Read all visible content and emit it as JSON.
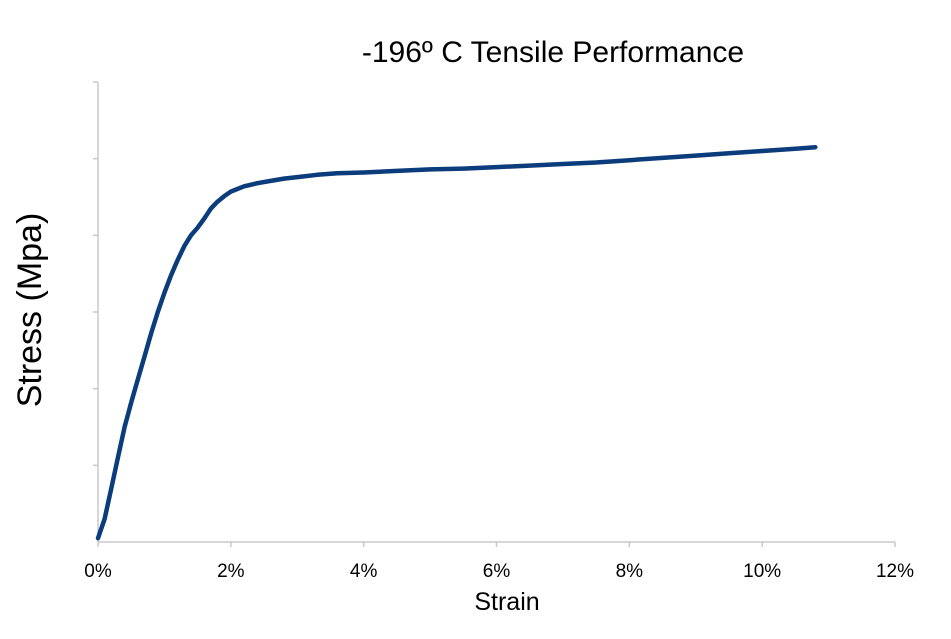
{
  "chart_data": {
    "type": "line",
    "title": "-196º C Tensile Performance",
    "xlabel": "Strain",
    "ylabel": "Stress (Mpa)",
    "xlim": [
      0,
      12
    ],
    "ylim": [
      0,
      6
    ],
    "x_ticks": [
      0,
      2,
      4,
      6,
      8,
      10,
      12
    ],
    "x_tick_labels": [
      "0%",
      "2%",
      "4%",
      "6%",
      "8%",
      "10%",
      "12%"
    ],
    "y_ticks": [
      0,
      1,
      2,
      3,
      4,
      5,
      6
    ],
    "y_tick_labels_shown": false,
    "grid": false,
    "legend": "none",
    "series": [
      {
        "color": "#0b3c7c",
        "x": [
          0,
          0.1,
          0.2,
          0.3,
          0.4,
          0.5,
          0.6,
          0.7,
          0.8,
          0.9,
          1.0,
          1.1,
          1.2,
          1.3,
          1.4,
          1.5,
          1.6,
          1.7,
          1.8,
          1.9,
          2.0,
          2.2,
          2.4,
          2.6,
          2.8,
          3.0,
          3.3,
          3.6,
          4.0,
          4.5,
          5.0,
          5.5,
          6.0,
          6.5,
          7.0,
          7.5,
          8.0,
          8.5,
          9.0,
          9.5,
          10.0,
          10.5,
          10.8
        ],
        "y": [
          0.05,
          0.3,
          0.7,
          1.1,
          1.5,
          1.82,
          2.12,
          2.42,
          2.72,
          3.0,
          3.25,
          3.48,
          3.68,
          3.86,
          4.0,
          4.1,
          4.22,
          4.35,
          4.44,
          4.51,
          4.57,
          4.64,
          4.68,
          4.71,
          4.74,
          4.76,
          4.79,
          4.81,
          4.82,
          4.84,
          4.86,
          4.87,
          4.89,
          4.91,
          4.93,
          4.95,
          4.98,
          5.01,
          5.04,
          5.07,
          5.1,
          5.13,
          5.15
        ]
      }
    ]
  }
}
